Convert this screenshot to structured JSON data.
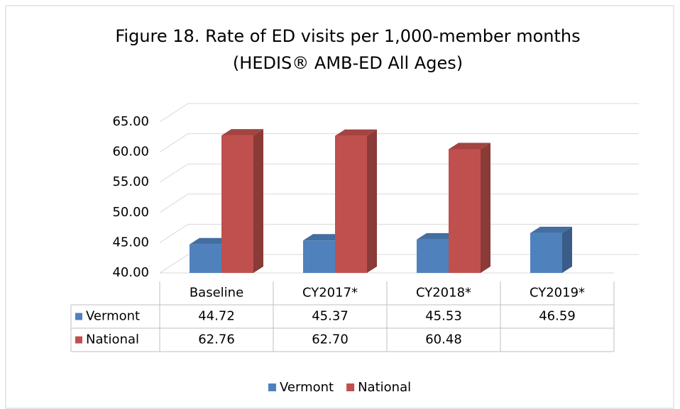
{
  "chart_data": {
    "type": "bar3d",
    "title": [
      "Figure 18. Rate of ED visits per 1,000-member months",
      "(HEDIS® AMB-ED All Ages)"
    ],
    "categories": [
      "Baseline",
      "CY2017*",
      "CY2018*",
      "CY2019*"
    ],
    "series": [
      {
        "name": "Vermont",
        "color": "#4f81bd",
        "values": [
          44.72,
          45.37,
          45.53,
          46.59
        ],
        "value_labels": [
          "44.72",
          "45.37",
          "45.53",
          "46.59"
        ]
      },
      {
        "name": "National",
        "color": "#c0504d",
        "values": [
          62.76,
          62.7,
          60.48,
          null
        ],
        "value_labels": [
          "62.76",
          "62.70",
          "60.48",
          null
        ]
      }
    ],
    "ylim": [
      40,
      65
    ],
    "yticks": [
      {
        "value": 40,
        "label": "40.00"
      },
      {
        "value": 45,
        "label": "45.00"
      },
      {
        "value": 50,
        "label": "50.00"
      },
      {
        "value": 55,
        "label": "55.00"
      },
      {
        "value": 60,
        "label": "60.00"
      },
      {
        "value": 65,
        "label": "65.00"
      }
    ],
    "grid": true,
    "legend": "bottom",
    "data_table": true
  }
}
